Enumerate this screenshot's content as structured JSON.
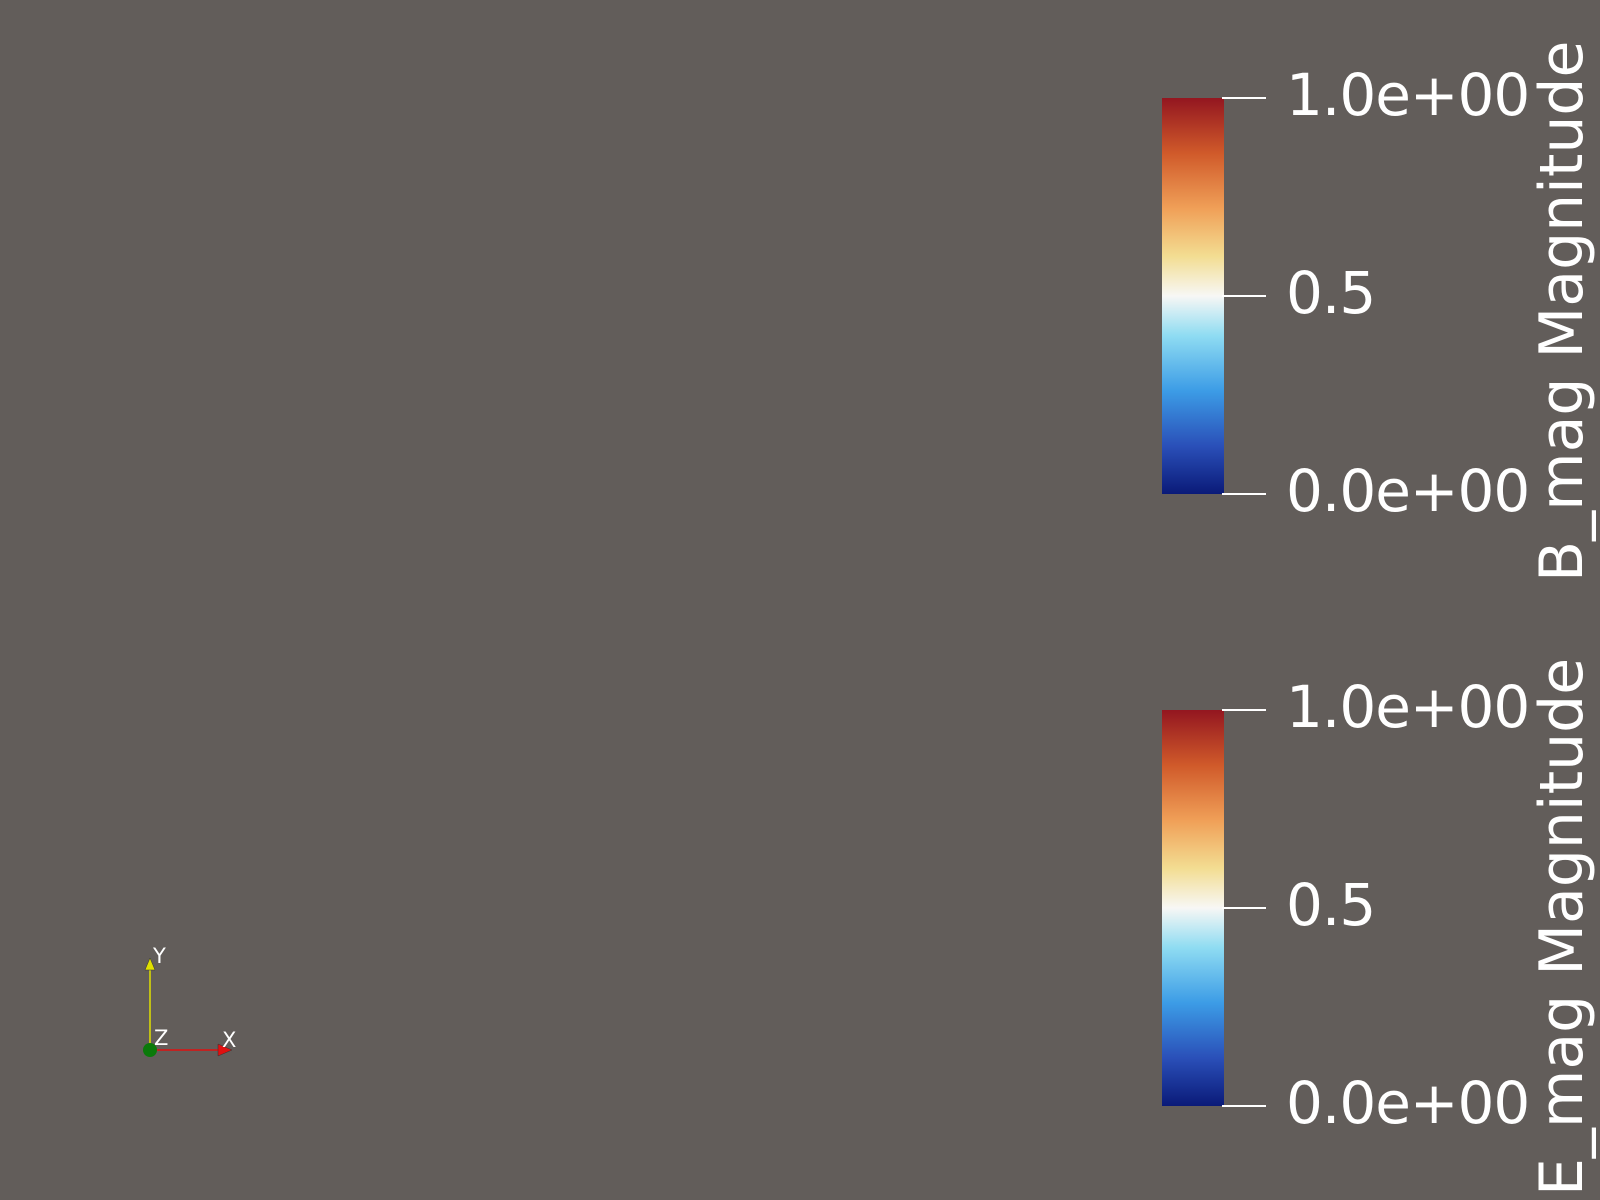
{
  "view": {
    "background_color": "#625d5a"
  },
  "legends": [
    {
      "title": "B_mag Magnitude",
      "ticks": [
        "1.0e+00",
        "0.5",
        "0.0e+00"
      ],
      "range": [
        0.0,
        1.0
      ],
      "colormap": "Turbo-like diverging (blue-white-red)"
    },
    {
      "title": "E_mag Magnitude",
      "ticks": [
        "1.0e+00",
        "0.5",
        "0.0e+00"
      ],
      "range": [
        0.0,
        1.0
      ],
      "colormap": "Turbo-like diverging (blue-white-red)"
    }
  ],
  "axes": {
    "x_label": "X",
    "y_label": "Y",
    "z_label": "Z",
    "x_color": "#e01010",
    "y_color": "#e0e000",
    "z_color": "#0a7a0a"
  }
}
